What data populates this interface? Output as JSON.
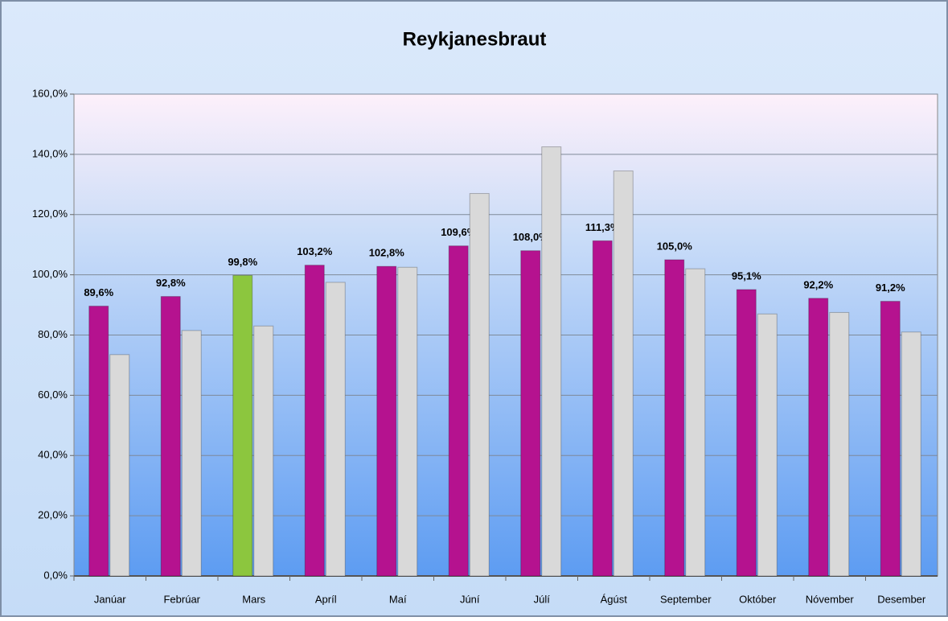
{
  "chart_data": {
    "type": "bar",
    "title": "Reykjanesbraut",
    "categories": [
      "Janúar",
      "Febrúar",
      "Mars",
      "Apríl",
      "Maí",
      "Júní",
      "Júlí",
      "Ágúst",
      "September",
      "Október",
      "Nóvember",
      "Desember"
    ],
    "series": [
      {
        "colors": [
          "#b5128f",
          "#b5128f",
          "#8cc63e",
          "#b5128f",
          "#b5128f",
          "#b5128f",
          "#b5128f",
          "#b5128f",
          "#b5128f",
          "#b5128f",
          "#b5128f",
          "#b5128f"
        ],
        "values": [
          89.6,
          92.8,
          99.8,
          103.2,
          102.8,
          109.6,
          108.0,
          111.3,
          105.0,
          95.1,
          92.2,
          91.2
        ],
        "value_labels": [
          "89,6%",
          "92,8%",
          "99,8%",
          "103,2%",
          "102,8%",
          "109,6%",
          "108,0%",
          "111,3%",
          "105,0%",
          "95,1%",
          "92,2%",
          "91,2%"
        ]
      },
      {
        "color": "#d9d9d9",
        "values": [
          73.5,
          81.5,
          83,
          97.5,
          102.5,
          127,
          142.5,
          134.5,
          102,
          87,
          87.5,
          81
        ]
      }
    ],
    "ylim": [
      0,
      160
    ],
    "yticks": [
      {
        "value": 0,
        "label": "0,0%"
      },
      {
        "value": 20,
        "label": "20,0%"
      },
      {
        "value": 40,
        "label": "40,0%"
      },
      {
        "value": 60,
        "label": "60,0%"
      },
      {
        "value": 80,
        "label": "80,0%"
      },
      {
        "value": 100,
        "label": "100,0%"
      },
      {
        "value": 120,
        "label": "120,0%"
      },
      {
        "value": 140,
        "label": "140,0%"
      },
      {
        "value": 160,
        "label": "160,0%"
      }
    ],
    "grid": true
  }
}
